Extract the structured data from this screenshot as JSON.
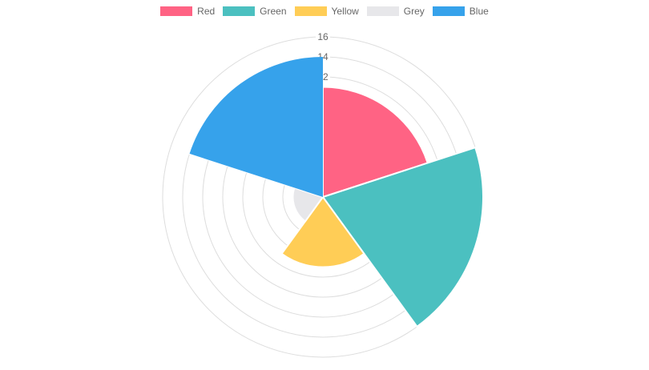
{
  "chart_data": {
    "type": "polarArea",
    "categories": [
      "Red",
      "Green",
      "Yellow",
      "Grey",
      "Blue"
    ],
    "values": [
      11,
      16,
      7,
      3,
      14
    ],
    "colors": [
      "#ff6384",
      "#4bc0c0",
      "#ffcd56",
      "#e7e7ea",
      "#36a2eb"
    ],
    "legend": {
      "position": "top",
      "labels": [
        "Red",
        "Green",
        "Yellow",
        "Grey",
        "Blue"
      ]
    },
    "r_axis": {
      "min": 0,
      "max": 16,
      "step": 2,
      "visible_tick_labels": [
        "12",
        "14",
        "16"
      ]
    },
    "grid": true
  }
}
